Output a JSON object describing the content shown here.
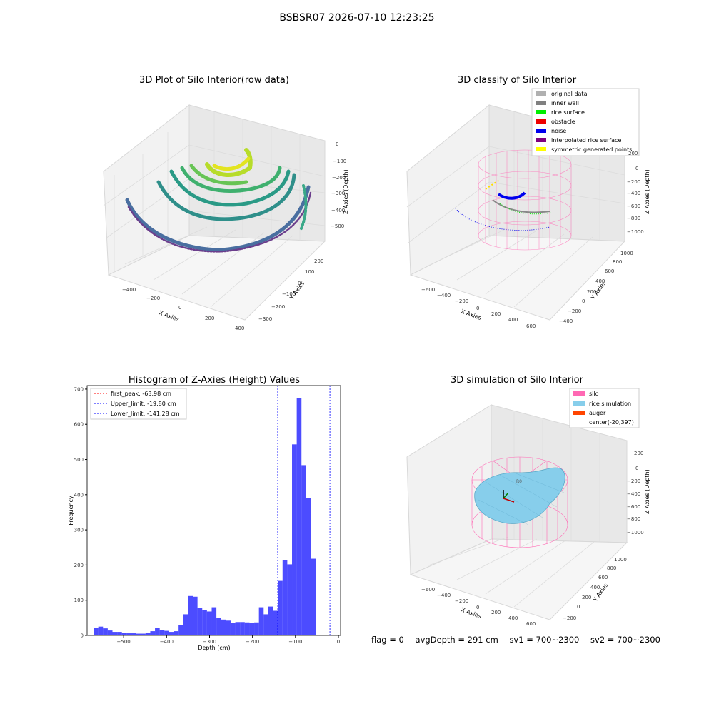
{
  "header": {
    "title": "BSBSR07 2026-07-10 12:23:25"
  },
  "status": {
    "flag": "flag = 0",
    "avg_depth": "avgDepth = 291 cm",
    "sv1": "sv1 = 700~2300",
    "sv2": "sv2 = 700~2300"
  },
  "panels": {
    "raw": {
      "title": "3D Plot of Silo Interior(row data)",
      "xlabel": "X Axies",
      "ylabel": "Y Axies",
      "zlabel": "Z Axies (Depth)",
      "x_ticks": [
        "−400",
        "−200",
        "0",
        "200",
        "400"
      ],
      "y_ticks": [
        "−300",
        "−200",
        "−100",
        "0",
        "100",
        "200"
      ],
      "z_ticks": [
        "0",
        "−100",
        "−200",
        "−300",
        "−400",
        "−500"
      ]
    },
    "classify": {
      "title": "3D classify of Silo Interior",
      "xlabel": "X Axies",
      "ylabel": "Y Axies",
      "zlabel": "Z Axies (Depth)",
      "x_ticks": [
        "−600",
        "−400",
        "−200",
        "0",
        "200",
        "400",
        "600"
      ],
      "y_ticks": [
        "−400",
        "−200",
        "0",
        "200",
        "400",
        "600",
        "800",
        "1000"
      ],
      "z_ticks": [
        "200",
        "0",
        "−200",
        "−400",
        "−600",
        "−800",
        "−1000"
      ],
      "legend": [
        {
          "label": "original data",
          "color": "#b0b0b0"
        },
        {
          "label": "inner wall",
          "color": "#808080"
        },
        {
          "label": "rice surface",
          "color": "#00ee00"
        },
        {
          "label": "obstacle",
          "color": "#ee0000"
        },
        {
          "label": "noise",
          "color": "#0000ee"
        },
        {
          "label": "interpolated rice surface",
          "color": "#800080"
        },
        {
          "label": "symmetric generated points",
          "color": "#ffff00"
        }
      ]
    },
    "simulation": {
      "title": "3D simulation of Silo Interior",
      "xlabel": "X Axies",
      "ylabel": "Y Axies",
      "zlabel": "Z Axies (Depth)",
      "x_ticks": [
        "−600",
        "−400",
        "−200",
        "0",
        "200",
        "400",
        "600"
      ],
      "y_ticks": [
        "−200",
        "0",
        "200",
        "400",
        "600",
        "800",
        "1000"
      ],
      "z_ticks": [
        "200",
        "0",
        "−200",
        "−400",
        "−600",
        "−800",
        "−1000"
      ],
      "legend": [
        {
          "label": "silo",
          "color": "#ff69b4"
        },
        {
          "label": "rice simulation",
          "color": "#87ceeb"
        },
        {
          "label": "auger",
          "color": "#ff4500"
        },
        {
          "label": "center(-20,397)",
          "color": ""
        }
      ]
    }
  },
  "chart_data": {
    "type": "bar",
    "title": "Histogram of Z-Axies (Height) Values",
    "xlabel": "Depth (cm)",
    "ylabel": "Frequency",
    "xlim": [
      -585,
      5
    ],
    "ylim": [
      0,
      710
    ],
    "x_ticks": [
      -500,
      -400,
      -300,
      -200,
      -100,
      0
    ],
    "y_ticks": [
      0,
      100,
      200,
      300,
      400,
      500,
      600,
      700
    ],
    "bar_color": "#0000ff",
    "bin_start": -570,
    "bin_width": 11,
    "values": [
      22,
      25,
      20,
      14,
      10,
      10,
      7,
      6,
      6,
      5,
      5,
      8,
      12,
      22,
      15,
      13,
      10,
      12,
      30,
      60,
      112,
      110,
      78,
      72,
      68,
      80,
      50,
      45,
      42,
      35,
      38,
      38,
      37,
      36,
      37,
      80,
      60,
      82,
      70,
      155,
      213,
      202,
      543,
      675,
      484,
      390,
      218
    ],
    "lines": [
      {
        "label": "first_peak: -63.98 cm",
        "x": -63.98,
        "color": "#ff0000"
      },
      {
        "label": "Upper_limit: -19.80 cm",
        "x": -19.8,
        "color": "#0000ff"
      },
      {
        "label": "Lower_limit: -141.28 cm",
        "x": -141.28,
        "color": "#0000ff"
      }
    ],
    "legend_position": "top-left"
  }
}
